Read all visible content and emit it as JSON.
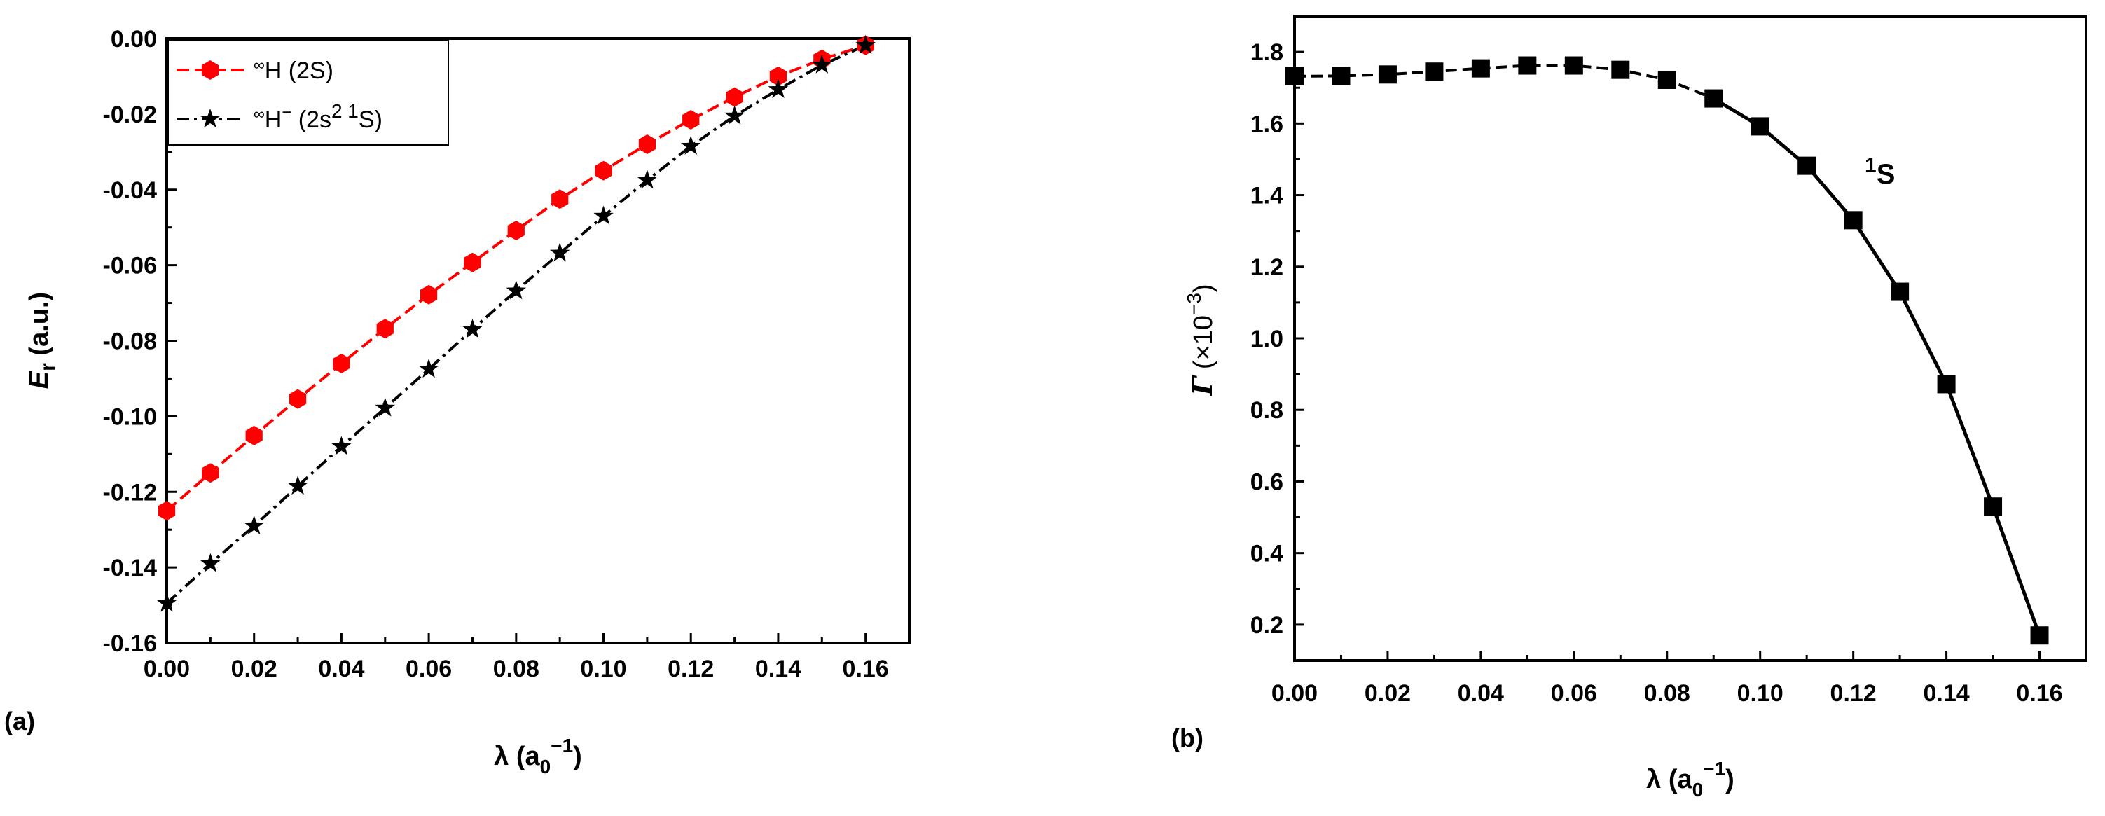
{
  "chart_data": [
    {
      "type": "line",
      "panel_label": "(a)",
      "xlabel": "λ (a0−1)",
      "xlabel_parts": {
        "main": "λ (a",
        "sub": "0",
        "sup": "−1",
        "close": ")"
      },
      "ylabel": "Er (a.u.)",
      "ylabel_parts": {
        "main": "E",
        "sub": "r",
        "rest": " (a.u.)"
      },
      "xlim": [
        0,
        0.17
      ],
      "ylim": [
        -0.16,
        0
      ],
      "xticks": [
        "0.00",
        "0.02",
        "0.04",
        "0.06",
        "0.08",
        "0.10",
        "0.12",
        "0.14",
        "0.16"
      ],
      "yticks": [
        "0.00",
        "-0.02",
        "-0.04",
        "-0.06",
        "-0.08",
        "-0.10",
        "-0.12",
        "-0.14",
        "-0.16"
      ],
      "legend_position": "top-left",
      "x": [
        0.0,
        0.01,
        0.02,
        0.03,
        0.04,
        0.05,
        0.06,
        0.07,
        0.08,
        0.09,
        0.1,
        0.11,
        0.12,
        0.13,
        0.14,
        0.15,
        0.16
      ],
      "series": [
        {
          "name": "∞H (2S)",
          "legend_parts": {
            "pre": "∞",
            "main": "H (2S)"
          },
          "color": "#ff0000",
          "marker": "hexagon",
          "line_style": "dashed",
          "values": [
            -0.125,
            -0.115,
            -0.1051,
            -0.0954,
            -0.086,
            -0.0768,
            -0.0678,
            -0.0593,
            -0.0508,
            -0.0425,
            -0.035,
            -0.028,
            -0.0215,
            -0.0155,
            -0.01,
            -0.0055,
            -0.0018
          ]
        },
        {
          "name": "∞H− (2s2 1S)",
          "legend_parts": {
            "pre": "∞",
            "main": "H",
            "sup1": "−",
            "mid": " (2s",
            "sup2": "2 1",
            "end": "S)"
          },
          "color": "#000000",
          "marker": "star",
          "line_style": "dash-dot",
          "values": [
            -0.1495,
            -0.139,
            -0.129,
            -0.1185,
            -0.108,
            -0.0978,
            -0.0875,
            -0.077,
            -0.0668,
            -0.0568,
            -0.047,
            -0.0375,
            -0.0285,
            -0.0205,
            -0.0135,
            -0.007,
            -0.0018
          ]
        }
      ]
    },
    {
      "type": "line",
      "panel_label": "(b)",
      "xlabel": "λ (a0−1)",
      "xlabel_parts": {
        "main": "λ (a",
        "sub": "0",
        "sup": "−1",
        "close": ")"
      },
      "ylabel": "Γ (×10−3)",
      "ylabel_parts": {
        "main": "Γ",
        "rest": " (×10",
        "sup": "−3",
        "close": ")"
      },
      "xlim": [
        0,
        0.17
      ],
      "ylim": [
        0.1,
        1.9
      ],
      "xticks": [
        "0.00",
        "0.02",
        "0.04",
        "0.06",
        "0.08",
        "0.10",
        "0.12",
        "0.14",
        "0.16"
      ],
      "yticks": [
        "0.2",
        "0.4",
        "0.6",
        "0.8",
        "1.0",
        "1.2",
        "1.4",
        "1.6",
        "1.8"
      ],
      "annotation": {
        "sup": "1",
        "main": "S"
      },
      "x": [
        0.0,
        0.01,
        0.02,
        0.03,
        0.04,
        0.05,
        0.06,
        0.07,
        0.08,
        0.09,
        0.1,
        0.11,
        0.12,
        0.13,
        0.14,
        0.15,
        0.16
      ],
      "series": [
        {
          "name": "1S",
          "color": "#000000",
          "marker": "square",
          "line_style": "dashed-then-solid",
          "values": [
            1.732,
            1.733,
            1.737,
            1.745,
            1.754,
            1.762,
            1.762,
            1.75,
            1.722,
            1.67,
            1.592,
            1.482,
            1.33,
            1.13,
            0.872,
            0.53,
            0.17
          ]
        }
      ]
    }
  ]
}
